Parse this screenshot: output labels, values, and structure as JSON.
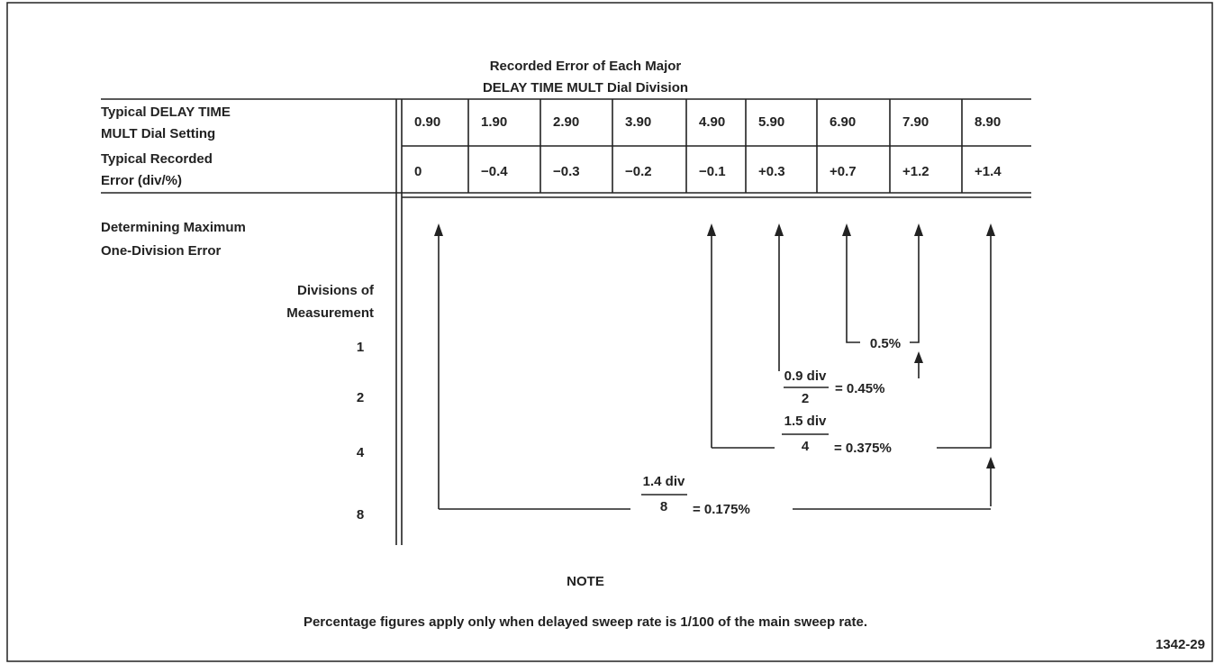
{
  "title": [
    "Recorded Error of Each Major",
    "DELAY TIME MULT Dial Division"
  ],
  "table": {
    "row_headers": [
      [
        "Typical DELAY TIME",
        "MULT Dial Setting"
      ],
      [
        "Typical Recorded",
        "Error (div/%)"
      ]
    ],
    "rows": [
      [
        "0.90",
        "1.90",
        "2.90",
        "3.90",
        "4.90",
        "5.90",
        "6.90",
        "7.90",
        "8.90"
      ],
      [
        "0",
        "−0.4",
        "−0.3",
        "−0.2",
        "−0.1",
        "+0.3",
        "+0.7",
        "+1.2",
        "+1.4"
      ]
    ]
  },
  "section": {
    "heading": [
      "Determining Maximum",
      "One-Division Error"
    ],
    "sub_heading": [
      "Divisions of",
      "Measurement"
    ],
    "divisions": [
      "1",
      "2",
      "4",
      "8"
    ]
  },
  "formulas": [
    {
      "result": "0.5%"
    },
    {
      "numerator": "0.9 div",
      "denominator": "2",
      "result": "= 0.45%"
    },
    {
      "numerator": "1.5 div",
      "denominator": "4",
      "result": "= 0.375%"
    },
    {
      "numerator": "1.4 div",
      "denominator": "8",
      "result": "= 0.175%"
    }
  ],
  "note": {
    "heading": "NOTE",
    "text": "Percentage figures apply only when delayed sweep rate is 1/100 of the main sweep rate."
  },
  "figure_number": "1342-29"
}
